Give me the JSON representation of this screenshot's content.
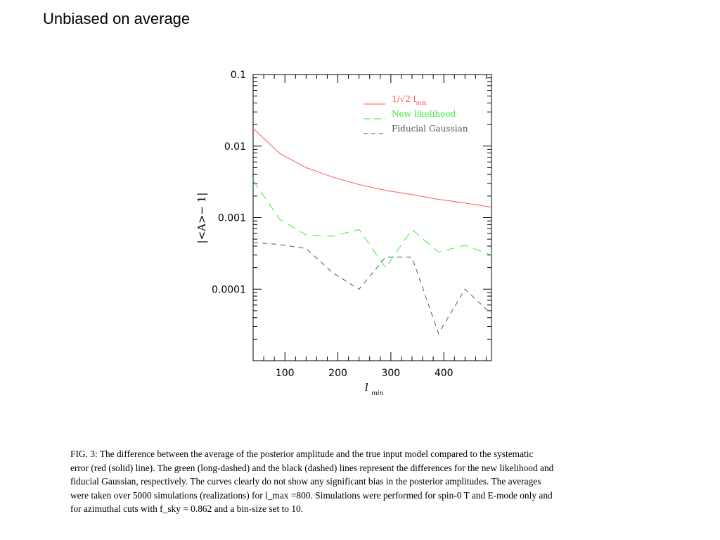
{
  "slide": {
    "title": "Unbiased on average"
  },
  "colors": {
    "red": "#ff5a5a",
    "green": "#33ee33",
    "black": "#555555"
  },
  "chart_data": {
    "type": "line",
    "xlabel": "l_min",
    "xlabel_main": "l",
    "xlabel_sub": "min",
    "ylabel": "|<A>− 1|",
    "y_scale": "log",
    "xlim": [
      40,
      490
    ],
    "ylim": [
      1e-05,
      0.1
    ],
    "xticks": [
      {
        "value": 100,
        "label": "100"
      },
      {
        "value": 200,
        "label": "200"
      },
      {
        "value": 300,
        "label": "300"
      },
      {
        "value": 400,
        "label": "400"
      }
    ],
    "yticks": [
      {
        "value": 0.1,
        "label": "0.1"
      },
      {
        "value": 0.01,
        "label": "0.01"
      },
      {
        "value": 0.001,
        "label": "0.001"
      },
      {
        "value": 0.0001,
        "label": "0.0001"
      }
    ],
    "legend_position": "top-right",
    "series": [
      {
        "name": "1/√2 l_min",
        "name_main": "1/√2 l",
        "name_sub": "min",
        "color": "#ff5a5a",
        "style": "solid",
        "x": [
          40,
          90,
          140,
          190,
          240,
          290,
          340,
          390,
          440,
          490
        ],
        "y": [
          0.0177,
          0.0079,
          0.005,
          0.0037,
          0.0029,
          0.0024,
          0.0021,
          0.0018,
          0.0016,
          0.0014
        ]
      },
      {
        "name": "New likelihood",
        "color": "#33ee33",
        "style": "long-dashed",
        "x": [
          40,
          90,
          140,
          190,
          240,
          290,
          340,
          390,
          440,
          490
        ],
        "y": [
          0.0033,
          0.00095,
          0.00057,
          0.00055,
          0.00068,
          0.0002,
          0.00068,
          0.00033,
          0.00041,
          0.0003
        ]
      },
      {
        "name": "Fiducial Gaussian",
        "color": "#555555",
        "style": "dashed",
        "x": [
          40,
          90,
          140,
          190,
          240,
          290,
          340,
          390,
          440,
          490
        ],
        "y": [
          0.00045,
          0.00042,
          0.00037,
          0.00017,
          0.0001,
          0.00028,
          0.00028,
          2.4e-05,
          0.0001,
          4.5e-05
        ]
      }
    ]
  },
  "caption": {
    "lines": [
      "FIG. 3: The difference between the average of the posterior amplitude and the true input model compared to the systematic",
      "error (red (solid) line). The green (long-dashed) and the black (dashed) lines represent the differences for the new likelihood and",
      "fiducial Gaussian, respectively. The curves clearly do not show any significant bias in the posterior amplitudes. The averages",
      "were taken over 5000 simulations (realizations) for l_max =800. Simulations were performed for spin-0 T and E-mode only and",
      "for azimuthal cuts with f_sky = 0.862 and a bin-size set to 10."
    ]
  }
}
